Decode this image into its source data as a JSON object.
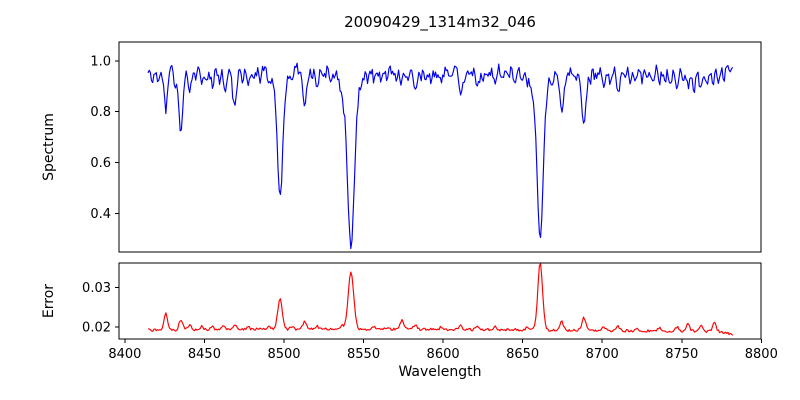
{
  "figure": {
    "background": "#ffffff",
    "axis_color": "#000000",
    "tick_color": "#000000"
  },
  "chart_data": {
    "type": "line",
    "title": "20090429_1314m32_046",
    "xlabel": "Wavelength",
    "grid": false,
    "legend": null,
    "xlim": [
      8396.3,
      8799.8
    ],
    "xticks": [
      {
        "v": 8400,
        "label": "8400"
      },
      {
        "v": 8450,
        "label": "8450"
      },
      {
        "v": 8500,
        "label": "8500"
      },
      {
        "v": 8550,
        "label": "8550"
      },
      {
        "v": 8600,
        "label": "8600"
      },
      {
        "v": 8650,
        "label": "8650"
      },
      {
        "v": 8700,
        "label": "8700"
      },
      {
        "v": 8750,
        "label": "8750"
      },
      {
        "v": 8800,
        "label": "8800"
      }
    ],
    "x_start": 8414.5,
    "x_end": 8782.0,
    "x_step": 0.75,
    "panels": [
      {
        "name": "spectrum",
        "ylabel": "Spectrum",
        "line_color": "#0000ee",
        "ylim": [
          0.248,
          1.074
        ],
        "yticks": [
          {
            "v": 0.4,
            "label": "0.4"
          },
          {
            "v": 0.6,
            "label": "0.6"
          },
          {
            "v": 0.8,
            "label": "0.8"
          },
          {
            "v": 1.0,
            "label": "1.0"
          }
        ],
        "model": {
          "continuum": 0.97,
          "noise_amplitude": 0.022,
          "noise_seed": 429,
          "lines_format": [
            "center_wavelength",
            "depth",
            "sigma"
          ],
          "absorption_lines": [
            [
              8417.5,
              0.055,
              1.0
            ],
            [
              8420.5,
              0.04,
              0.9
            ],
            [
              8425.7,
              0.16,
              1.2
            ],
            [
              8431.5,
              0.065,
              0.9
            ],
            [
              8435.2,
              0.24,
              1.3
            ],
            [
              8440.8,
              0.085,
              1.0
            ],
            [
              8444.0,
              0.04,
              0.9
            ],
            [
              8448.2,
              0.065,
              1.0
            ],
            [
              8451.5,
              0.045,
              0.9
            ],
            [
              8455.0,
              0.06,
              1.0
            ],
            [
              8459.5,
              0.05,
              0.9
            ],
            [
              8463.0,
              0.08,
              0.9
            ],
            [
              8468.9,
              0.15,
              1.3
            ],
            [
              8474.0,
              0.04,
              0.9
            ],
            [
              8477.5,
              0.06,
              1.0
            ],
            [
              8481.0,
              0.045,
              0.9
            ],
            [
              8485.0,
              0.04,
              0.9
            ],
            [
              8490.5,
              0.05,
              0.9
            ],
            [
              8497.5,
              0.43,
              1.6
            ],
            [
              8497.5,
              0.09,
              3.5
            ],
            [
              8505.0,
              0.04,
              0.9
            ],
            [
              8513.0,
              0.17,
              1.2
            ],
            [
              8517.5,
              0.04,
              0.9
            ],
            [
              8520.8,
              0.065,
              1.0
            ],
            [
              8525.0,
              0.035,
              0.9
            ],
            [
              8529.0,
              0.04,
              0.9
            ],
            [
              8536.5,
              0.05,
              1.2
            ],
            [
              8542.1,
              0.605,
              2.0
            ],
            [
              8542.1,
              0.11,
              5.5
            ],
            [
              8553.0,
              0.035,
              0.9
            ],
            [
              8556.8,
              0.05,
              0.9
            ],
            [
              8560.5,
              0.04,
              0.9
            ],
            [
              8564.5,
              0.035,
              0.9
            ],
            [
              8570.0,
              0.04,
              0.9
            ],
            [
              8574.0,
              0.055,
              1.0
            ],
            [
              8577.5,
              0.04,
              0.9
            ],
            [
              8582.5,
              0.1,
              1.2
            ],
            [
              8586.0,
              0.04,
              0.9
            ],
            [
              8589.0,
              0.035,
              0.9
            ],
            [
              8592.5,
              0.045,
              0.9
            ],
            [
              8596.0,
              0.04,
              0.9
            ],
            [
              8599.0,
              0.055,
              1.0
            ],
            [
              8604.0,
              0.035,
              0.9
            ],
            [
              8611.0,
              0.115,
              1.2
            ],
            [
              8614.5,
              0.04,
              0.9
            ],
            [
              8617.5,
              0.035,
              0.9
            ],
            [
              8621.5,
              0.085,
              1.1
            ],
            [
              8625.5,
              0.04,
              0.9
            ],
            [
              8629.0,
              0.035,
              0.9
            ],
            [
              8632.5,
              0.05,
              0.9
            ],
            [
              8637.0,
              0.04,
              0.9
            ],
            [
              8641.0,
              0.035,
              0.9
            ],
            [
              8645.0,
              0.045,
              0.9
            ],
            [
              8649.0,
              0.04,
              0.9
            ],
            [
              8653.0,
              0.045,
              0.9
            ],
            [
              8656.5,
              0.04,
              0.9
            ],
            [
              8661.0,
              0.58,
              1.9
            ],
            [
              8661.0,
              0.1,
              4.5
            ],
            [
              8669.0,
              0.04,
              0.9
            ],
            [
              8674.5,
              0.16,
              1.3
            ],
            [
              8678.0,
              0.04,
              0.9
            ],
            [
              8681.5,
              0.045,
              0.9
            ],
            [
              8684.5,
              0.04,
              0.9
            ],
            [
              8688.5,
              0.215,
              1.4
            ],
            [
              8692.5,
              0.045,
              0.9
            ],
            [
              8696.0,
              0.04,
              0.9
            ],
            [
              8701.0,
              0.08,
              1.0
            ],
            [
              8705.0,
              0.045,
              0.9
            ],
            [
              8710.0,
              0.095,
              1.1
            ],
            [
              8714.0,
              0.04,
              0.9
            ],
            [
              8718.0,
              0.055,
              0.9
            ],
            [
              8721.5,
              0.05,
              0.9
            ],
            [
              8725.0,
              0.04,
              0.9
            ],
            [
              8728.5,
              0.045,
              0.9
            ],
            [
              8732.0,
              0.05,
              0.9
            ],
            [
              8736.0,
              0.055,
              0.9
            ],
            [
              8739.5,
              0.04,
              0.9
            ],
            [
              8743.0,
              0.05,
              0.9
            ],
            [
              8747.0,
              0.065,
              1.0
            ],
            [
              8750.5,
              0.045,
              0.9
            ],
            [
              8754.0,
              0.075,
              1.1
            ],
            [
              8757.5,
              0.09,
              1.0
            ],
            [
              8762.1,
              0.085,
              1.1
            ],
            [
              8766.0,
              0.05,
              0.9
            ],
            [
              8769.5,
              0.055,
              0.9
            ],
            [
              8773.0,
              0.05,
              0.9
            ],
            [
              8776.5,
              0.035,
              0.9
            ]
          ]
        }
      },
      {
        "name": "error",
        "ylabel": "Error",
        "line_color": "#ff0000",
        "ylim": [
          0.017,
          0.0361
        ],
        "yticks": [
          {
            "v": 0.02,
            "label": "0.02"
          },
          {
            "v": 0.03,
            "label": "0.03"
          }
        ],
        "model": {
          "baseline_points": [
            [
              8414.5,
              0.0192
            ],
            [
              8450,
              0.0194
            ],
            [
              8520,
              0.0195
            ],
            [
              8600,
              0.0194
            ],
            [
              8655,
              0.0193
            ],
            [
              8700,
              0.0191
            ],
            [
              8750,
              0.019
            ],
            [
              8774,
              0.0189
            ],
            [
              8779,
              0.0184
            ],
            [
              8782,
              0.018
            ]
          ],
          "noise_amplitude": 0.00032,
          "noise_seed": 1314,
          "peaks_format": [
            "center_wavelength",
            "height",
            "sigma"
          ],
          "peaks": [
            [
              8425.7,
              0.0043,
              1.1
            ],
            [
              8435.2,
              0.0026,
              1.1
            ],
            [
              8440.8,
              0.0013,
              0.9
            ],
            [
              8448.2,
              0.0008,
              0.9
            ],
            [
              8455.0,
              0.0007,
              0.9
            ],
            [
              8461.5,
              0.001,
              0.9
            ],
            [
              8468.9,
              0.0012,
              1.1
            ],
            [
              8477.5,
              0.0007,
              0.9
            ],
            [
              8490.5,
              0.0006,
              0.9
            ],
            [
              8497.5,
              0.0079,
              1.4
            ],
            [
              8505.0,
              0.0006,
              0.9
            ],
            [
              8513.0,
              0.002,
              1.1
            ],
            [
              8520.8,
              0.0008,
              0.9
            ],
            [
              8536.5,
              0.0008,
              1.0
            ],
            [
              8542.1,
              0.0144,
              1.7
            ],
            [
              8556.8,
              0.0008,
              0.9
            ],
            [
              8565.0,
              0.0006,
              0.9
            ],
            [
              8574.0,
              0.0023,
              1.1
            ],
            [
              8582.5,
              0.0012,
              1.0
            ],
            [
              8599.0,
              0.0007,
              0.9
            ],
            [
              8611.0,
              0.0011,
              1.0
            ],
            [
              8621.5,
              0.001,
              1.0
            ],
            [
              8632.5,
              0.0007,
              0.9
            ],
            [
              8653.0,
              0.0006,
              0.9
            ],
            [
              8661.0,
              0.0167,
              1.5
            ],
            [
              8674.5,
              0.0022,
              1.1
            ],
            [
              8688.5,
              0.0031,
              1.2
            ],
            [
              8701.0,
              0.0011,
              0.9
            ],
            [
              8710.0,
              0.0011,
              0.9
            ],
            [
              8721.5,
              0.0008,
              0.9
            ],
            [
              8736.0,
              0.0009,
              0.9
            ],
            [
              8747.0,
              0.001,
              0.9
            ],
            [
              8754.0,
              0.0021,
              1.0
            ],
            [
              8762.1,
              0.0014,
              0.9
            ],
            [
              8770.5,
              0.0021,
              1.0
            ]
          ]
        }
      }
    ]
  }
}
